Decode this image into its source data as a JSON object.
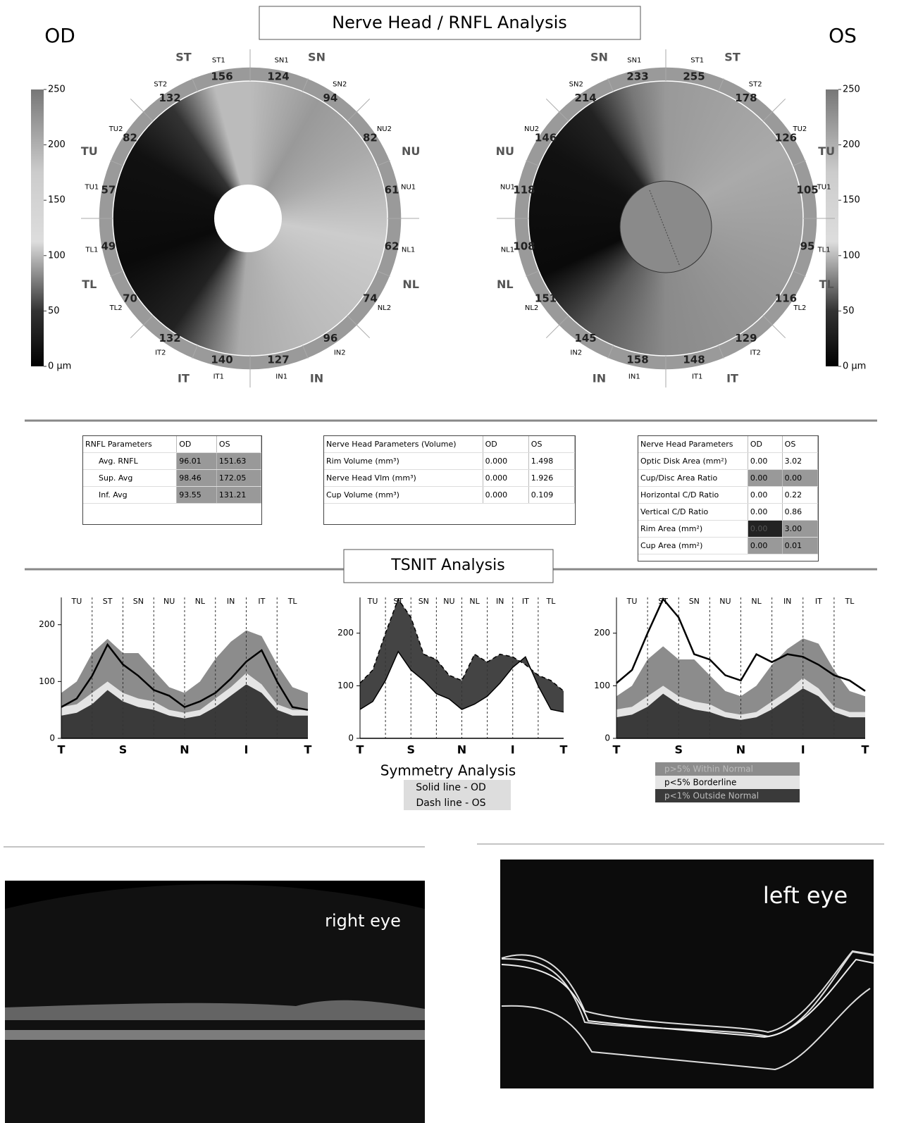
{
  "header": {
    "title": "Nerve Head / RNFL Analysis",
    "od": "OD",
    "os": "OS"
  },
  "colorbar": {
    "labels": [
      "250",
      "200",
      "150",
      "100",
      "50",
      "0 µm"
    ]
  },
  "od_map": {
    "sectors": [
      {
        "name": "SN1",
        "value": "124"
      },
      {
        "name": "SN2",
        "value": "94"
      },
      {
        "name": "NU2",
        "value": "82"
      },
      {
        "name": "NU1",
        "value": "61"
      },
      {
        "name": "NL1",
        "value": "62"
      },
      {
        "name": "NL2",
        "value": "74"
      },
      {
        "name": "IN2",
        "value": "96"
      },
      {
        "name": "IN1",
        "value": "127"
      },
      {
        "name": "IT1",
        "value": "140"
      },
      {
        "name": "IT2",
        "value": "132"
      },
      {
        "name": "TL2",
        "value": "70"
      },
      {
        "name": "TL1",
        "value": "49"
      },
      {
        "name": "TU1",
        "value": "57"
      },
      {
        "name": "TU2",
        "value": "82"
      },
      {
        "name": "ST2",
        "value": "132"
      },
      {
        "name": "ST1",
        "value": "156"
      }
    ],
    "quadrants": [
      "SN",
      "NU",
      "NL",
      "IN",
      "IT",
      "TL",
      "TU",
      "ST"
    ]
  },
  "os_map": {
    "sectors": [
      {
        "name": "ST1",
        "value": "255"
      },
      {
        "name": "ST2",
        "value": "178"
      },
      {
        "name": "TU2",
        "value": "126"
      },
      {
        "name": "TU1",
        "value": "105"
      },
      {
        "name": "TL1",
        "value": "95"
      },
      {
        "name": "TL2",
        "value": "116"
      },
      {
        "name": "IT2",
        "value": "129"
      },
      {
        "name": "IT1",
        "value": "148"
      },
      {
        "name": "IN1",
        "value": "158"
      },
      {
        "name": "IN2",
        "value": "145"
      },
      {
        "name": "NL2",
        "value": "151"
      },
      {
        "name": "NL1",
        "value": "108"
      },
      {
        "name": "NU1",
        "value": "118"
      },
      {
        "name": "NU2",
        "value": "146"
      },
      {
        "name": "SN2",
        "value": "214"
      },
      {
        "name": "SN1",
        "value": "233"
      }
    ],
    "quadrants": [
      "ST",
      "TU",
      "TL",
      "IT",
      "IN",
      "NL",
      "NU",
      "SN"
    ]
  },
  "rnfl_table": {
    "header": [
      "RNFL Parameters",
      "OD",
      "OS"
    ],
    "rows": [
      [
        "Avg. RNFL",
        "96.01",
        "151.63"
      ],
      [
        "Sup. Avg",
        "98.46",
        "172.05"
      ],
      [
        "Inf. Avg",
        "93.55",
        "131.21"
      ]
    ]
  },
  "volume_table": {
    "header": [
      "Nerve Head Parameters (Volume)",
      "OD",
      "OS"
    ],
    "rows": [
      [
        "Rim Volume (mm³)",
        "0.000",
        "1.498"
      ],
      [
        "Nerve Head Vlm (mm³)",
        "0.000",
        "1.926"
      ],
      [
        "Cup Volume (mm³)",
        "0.000",
        "0.109"
      ]
    ]
  },
  "nerve_table": {
    "header": [
      "Nerve Head Parameters",
      "OD",
      "OS"
    ],
    "rows": [
      [
        "Optic Disk Area (mm²)",
        "0.00",
        "3.02"
      ],
      [
        "Cup/Disc Area Ratio",
        "0.00",
        "0.00"
      ],
      [
        "Horizontal C/D Ratio",
        "0.00",
        "0.22"
      ],
      [
        "Vertical C/D Ratio",
        "0.00",
        "0.86"
      ],
      [
        "Rim Area (mm²)",
        "0.00",
        "3.00"
      ],
      [
        "Cup Area (mm²)",
        "0.00",
        "0.01"
      ]
    ]
  },
  "tsnit": {
    "title": "TSNIT Analysis",
    "x_labels": [
      "T",
      "S",
      "N",
      "I",
      "T"
    ],
    "sections": [
      "TU",
      "ST",
      "SN",
      "NU",
      "NL",
      "IN",
      "IT",
      "TL"
    ],
    "yticks": [
      0,
      100,
      200
    ],
    "od_ylim": [
      0,
      248
    ],
    "os_ylim": [
      0,
      268
    ],
    "norms": {
      "within": [
        80,
        100,
        150,
        175,
        150,
        150,
        120,
        90,
        80,
        100,
        140,
        170,
        190,
        180,
        130,
        90,
        80
      ],
      "borderline": [
        55,
        60,
        80,
        100,
        80,
        70,
        65,
        50,
        45,
        50,
        70,
        90,
        115,
        95,
        60,
        50,
        50
      ],
      "outside": [
        40,
        45,
        60,
        85,
        65,
        55,
        50,
        40,
        35,
        40,
        55,
        75,
        95,
        80,
        50,
        40,
        40
      ]
    },
    "od": [
      55,
      70,
      110,
      165,
      130,
      110,
      85,
      75,
      55,
      65,
      80,
      105,
      135,
      155,
      100,
      55,
      50
    ],
    "os": [
      105,
      130,
      200,
      265,
      230,
      160,
      150,
      120,
      110,
      160,
      145,
      160,
      155,
      140,
      120,
      110,
      90
    ]
  },
  "symmetry": {
    "title": "Symmetry Analysis",
    "solid": "Solid line - OD",
    "dash": "Dash line - OS"
  },
  "legend": [
    {
      "label": "p>5% Within Normal",
      "color": "#8c8c8c"
    },
    {
      "label": "p<5% Borderline",
      "color": "#e4e4e4"
    },
    {
      "label": "p<1% Outside Normal",
      "color": "#3a3a3a"
    }
  ],
  "scans": {
    "right": "right eye",
    "left": "left eye"
  }
}
